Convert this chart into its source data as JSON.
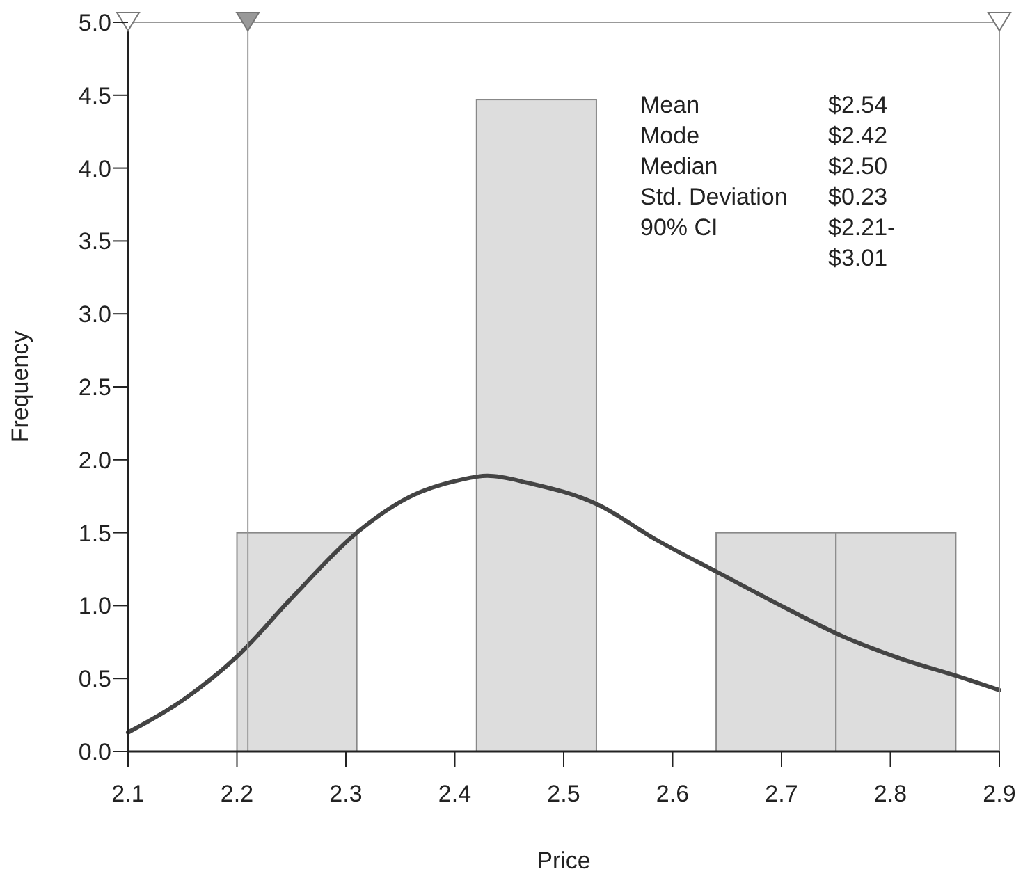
{
  "chart_data": {
    "type": "histogram",
    "xlabel": "Price",
    "ylabel": "Frequency",
    "bins": [
      2.2,
      2.31,
      2.42,
      2.53,
      2.64,
      2.75,
      2.86
    ],
    "values": [
      1.5,
      0,
      4.47,
      0,
      1.5,
      1.5
    ],
    "color": "#dddddd",
    "series": [
      {
        "type": "line",
        "color": "#444444",
        "x": [
          2.1,
          2.15,
          2.2,
          2.25,
          2.31,
          2.357,
          2.404,
          2.43,
          2.468,
          2.532,
          2.583,
          2.646,
          2.702,
          2.756,
          2.808,
          2.868,
          2.9
        ],
        "values": [
          0.13,
          0.35,
          0.65,
          1.05,
          1.5,
          1.74,
          1.86,
          1.89,
          1.84,
          1.69,
          1.46,
          1.21,
          0.99,
          0.79,
          0.64,
          0.5,
          0.42
        ]
      }
    ],
    "xlim": [
      2.1,
      2.9
    ],
    "xticks": [
      2.1,
      2.2,
      2.3,
      2.4,
      2.5,
      2.6,
      2.7,
      2.8,
      2.9
    ],
    "ylim": [
      0,
      5
    ],
    "yticks": [
      {
        "value": 0,
        "label": "0.0"
      },
      {
        "value": 0.5,
        "label": "0.5"
      },
      {
        "value": 1,
        "label": "1.0"
      },
      {
        "value": 1.5,
        "label": "1.5"
      },
      {
        "value": 2,
        "label": "2.0"
      },
      {
        "value": 2.5,
        "label": "2.5"
      },
      {
        "value": 3,
        "label": "3.0"
      },
      {
        "value": 3.5,
        "label": "3.5"
      },
      {
        "value": 4,
        "label": "4.0"
      },
      {
        "value": 4.5,
        "label": "4.5"
      },
      {
        "value": 5,
        "label": "5.0"
      }
    ],
    "ref_lines": [
      {
        "axis": "x",
        "value": 2.21,
        "color": "#999999"
      },
      {
        "axis": "x",
        "value": 2.9,
        "color": "#999999"
      }
    ],
    "annotations": [
      "Mean",
      "$2.54",
      "Mode",
      "$2.42",
      "Median",
      "$2.50",
      "Std. Deviation",
      "$0.23",
      "90% CI",
      "$2.21-\n$3.01"
    ],
    "marker": "none"
  }
}
